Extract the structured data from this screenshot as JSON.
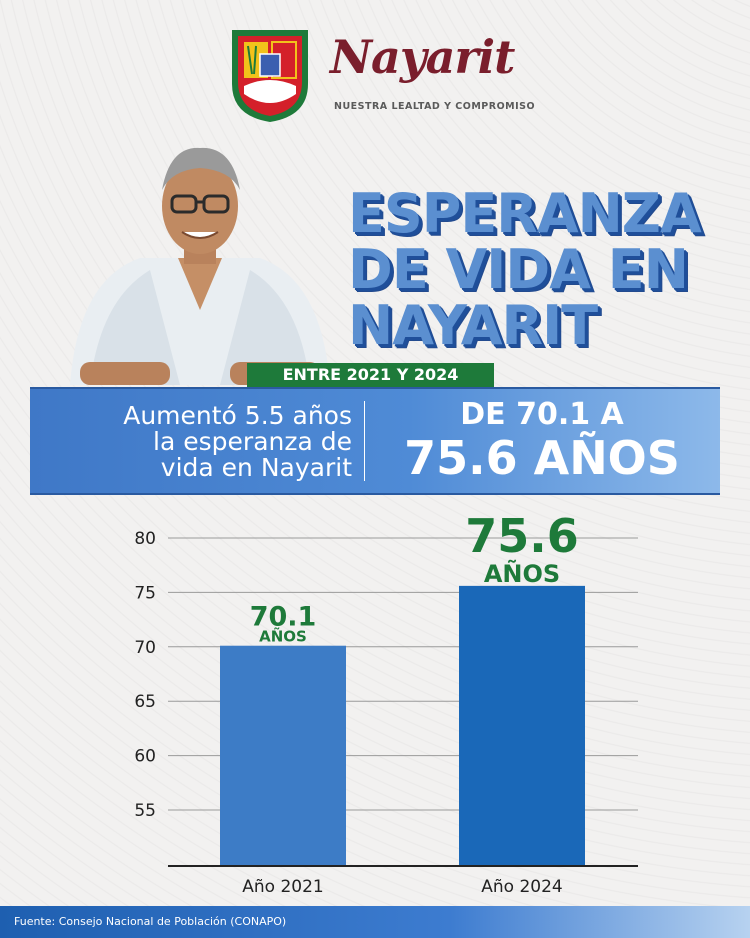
{
  "header": {
    "brand_name": "Nayarit",
    "tagline": "NUESTRA LEALTAD Y COMPROMISO"
  },
  "title_lines": [
    "ESPERANZA",
    "DE VIDA EN",
    "NAYARIT"
  ],
  "badge": "ENTRE 2021 Y 2024",
  "banner": {
    "left_lines": [
      "Aumentó 5.5 años",
      "la esperanza de",
      "vida en Nayarit"
    ],
    "right_top": "DE 70.1 A",
    "right_big": "75.6 AÑOS"
  },
  "chart_data": {
    "type": "bar",
    "categories": [
      "Año 2021",
      "Año 2024"
    ],
    "values": [
      70.1,
      75.6
    ],
    "data_labels": [
      {
        "value": "70.1",
        "unit": "AÑOS"
      },
      {
        "value": "75.6",
        "unit": "AÑOS"
      }
    ],
    "yticks": [
      55,
      60,
      65,
      70,
      75,
      80
    ],
    "ylim": [
      50,
      80
    ],
    "grid": true,
    "colors": {
      "bar_2021": "#3d7cc6",
      "bar_2024": "#1a68b8",
      "label": "#1e7a3a"
    }
  },
  "footer": "Fuente: Consejo Nacional de Población (CONAPO)",
  "colors": {
    "brand": "#7a1e2c",
    "title": "#5b8fd0",
    "badge": "#1e7a3a",
    "banner": "#4f8bd6"
  }
}
